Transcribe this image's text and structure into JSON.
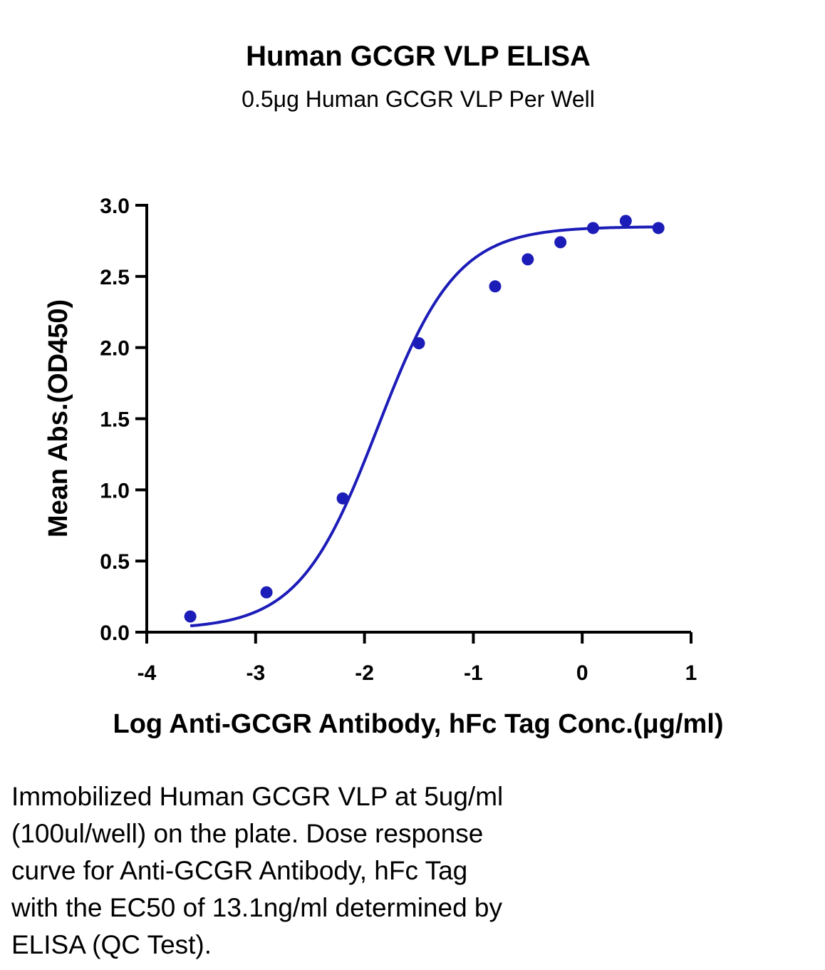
{
  "chart_data": {
    "type": "scatter",
    "title": "Human GCGR VLP ELISA",
    "subtitle": "0.5μg Human GCGR VLP Per Well",
    "xlabel": "Log Anti-GCGR Antibody, hFc Tag Conc.(μg/ml)",
    "ylabel": "Mean Abs.(OD450)",
    "xlim": [
      -4,
      1
    ],
    "ylim": [
      0,
      3
    ],
    "x_ticks": [
      "-4",
      "-3",
      "-2",
      "-1",
      "0",
      "1"
    ],
    "y_ticks": [
      "0.0",
      "0.5",
      "1.0",
      "1.5",
      "2.0",
      "2.5",
      "3.0"
    ],
    "grid": false,
    "colors": {
      "series": "#1c1cb8",
      "axis": "#000000"
    },
    "series": [
      {
        "points": [
          {
            "x": -3.6,
            "y": 0.11
          },
          {
            "x": -2.9,
            "y": 0.28
          },
          {
            "x": -2.2,
            "y": 0.94
          },
          {
            "x": -1.5,
            "y": 2.03
          },
          {
            "x": -0.8,
            "y": 2.43
          },
          {
            "x": -0.5,
            "y": 2.62
          },
          {
            "x": -0.2,
            "y": 2.74
          },
          {
            "x": 0.1,
            "y": 2.84
          },
          {
            "x": 0.4,
            "y": 2.89
          },
          {
            "x": 0.7,
            "y": 2.84
          }
        ],
        "fit": {
          "model": "4PL",
          "bottom": 0.02,
          "top": 2.85,
          "logEC50": -1.88,
          "hill": 1.2,
          "x_range": [
            -3.6,
            0.7
          ]
        }
      }
    ]
  },
  "caption": {
    "lines": [
      "Immobilized Human GCGR VLP at 5ug/ml",
      "(100ul/well) on the plate. Dose response",
      "curve for Anti-GCGR Antibody, hFc Tag",
      "with the EC50 of 13.1ng/ml determined by",
      "ELISA (QC Test)."
    ]
  }
}
